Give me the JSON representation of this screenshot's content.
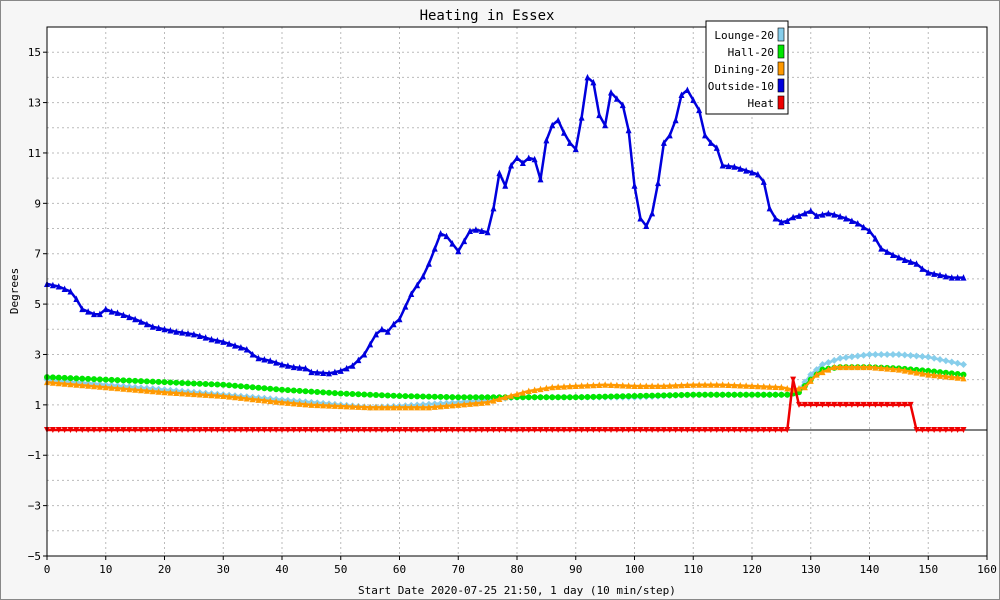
{
  "chart_data": {
    "type": "line",
    "title": "Heating in Essex",
    "xlabel": "Start Date 2020-07-25 21:50, 1 day (10 min/step)",
    "ylabel": "Degrees",
    "xlim": [
      0,
      160
    ],
    "ylim": [
      -5,
      16
    ],
    "xticks": [
      0,
      10,
      20,
      30,
      40,
      50,
      60,
      70,
      80,
      90,
      100,
      110,
      120,
      130,
      140,
      150,
      160
    ],
    "yticks": [
      -5,
      -3,
      -1,
      1,
      3,
      5,
      7,
      9,
      11,
      13,
      15
    ],
    "grid": true,
    "legend_position": "top-right",
    "series": [
      {
        "name": "Lounge-20",
        "color": "#87ceeb",
        "marker": "diamond",
        "points": [
          [
            0,
            2.0
          ],
          [
            10,
            1.8
          ],
          [
            20,
            1.6
          ],
          [
            30,
            1.4
          ],
          [
            40,
            1.2
          ],
          [
            50,
            1.0
          ],
          [
            55,
            0.9
          ],
          [
            60,
            0.95
          ],
          [
            70,
            1.1
          ],
          [
            75,
            1.2
          ],
          [
            80,
            1.3
          ],
          [
            90,
            1.3
          ],
          [
            100,
            1.3
          ],
          [
            110,
            1.4
          ],
          [
            120,
            1.4
          ],
          [
            126,
            1.4
          ],
          [
            128,
            1.6
          ],
          [
            130,
            2.2
          ],
          [
            132,
            2.6
          ],
          [
            135,
            2.85
          ],
          [
            140,
            3.0
          ],
          [
            145,
            3.0
          ],
          [
            150,
            2.9
          ],
          [
            154,
            2.7
          ],
          [
            156,
            2.6
          ]
        ]
      },
      {
        "name": "Hall-20",
        "color": "#00e600",
        "marker": "circle",
        "points": [
          [
            0,
            2.1
          ],
          [
            10,
            2.0
          ],
          [
            20,
            1.9
          ],
          [
            30,
            1.8
          ],
          [
            40,
            1.6
          ],
          [
            50,
            1.45
          ],
          [
            60,
            1.35
          ],
          [
            70,
            1.3
          ],
          [
            80,
            1.3
          ],
          [
            90,
            1.3
          ],
          [
            100,
            1.35
          ],
          [
            110,
            1.4
          ],
          [
            120,
            1.4
          ],
          [
            126,
            1.4
          ],
          [
            128,
            1.5
          ],
          [
            130,
            2.0
          ],
          [
            132,
            2.4
          ],
          [
            135,
            2.5
          ],
          [
            140,
            2.5
          ],
          [
            145,
            2.45
          ],
          [
            150,
            2.35
          ],
          [
            156,
            2.2
          ]
        ]
      },
      {
        "name": "Dining-20",
        "color": "#ff9900",
        "marker": "triangle",
        "points": [
          [
            0,
            1.9
          ],
          [
            10,
            1.7
          ],
          [
            20,
            1.5
          ],
          [
            30,
            1.35
          ],
          [
            40,
            1.1
          ],
          [
            45,
            1.0
          ],
          [
            50,
            0.95
          ],
          [
            55,
            0.9
          ],
          [
            60,
            0.9
          ],
          [
            65,
            0.9
          ],
          [
            70,
            1.0
          ],
          [
            75,
            1.1
          ],
          [
            78,
            1.3
          ],
          [
            82,
            1.55
          ],
          [
            86,
            1.7
          ],
          [
            90,
            1.75
          ],
          [
            95,
            1.8
          ],
          [
            100,
            1.75
          ],
          [
            105,
            1.75
          ],
          [
            110,
            1.8
          ],
          [
            115,
            1.8
          ],
          [
            120,
            1.75
          ],
          [
            125,
            1.7
          ],
          [
            127,
            1.6
          ],
          [
            129,
            1.7
          ],
          [
            131,
            2.2
          ],
          [
            134,
            2.5
          ],
          [
            140,
            2.5
          ],
          [
            145,
            2.4
          ],
          [
            150,
            2.2
          ],
          [
            156,
            2.05
          ]
        ]
      },
      {
        "name": "Outside-10",
        "color": "#0000dd",
        "marker": "triangle",
        "points": [
          [
            0,
            5.8
          ],
          [
            2,
            5.7
          ],
          [
            4,
            5.5
          ],
          [
            5,
            5.2
          ],
          [
            6,
            4.8
          ],
          [
            7,
            4.7
          ],
          [
            8,
            4.6
          ],
          [
            9,
            4.6
          ],
          [
            10,
            4.8
          ],
          [
            11,
            4.7
          ],
          [
            12,
            4.65
          ],
          [
            15,
            4.4
          ],
          [
            18,
            4.1
          ],
          [
            20,
            4.0
          ],
          [
            22,
            3.9
          ],
          [
            25,
            3.8
          ],
          [
            28,
            3.6
          ],
          [
            30,
            3.5
          ],
          [
            32,
            3.35
          ],
          [
            34,
            3.2
          ],
          [
            35,
            3.0
          ],
          [
            36,
            2.85
          ],
          [
            38,
            2.75
          ],
          [
            40,
            2.6
          ],
          [
            42,
            2.5
          ],
          [
            44,
            2.45
          ],
          [
            45,
            2.3
          ],
          [
            48,
            2.25
          ],
          [
            50,
            2.35
          ],
          [
            52,
            2.55
          ],
          [
            54,
            3.0
          ],
          [
            55,
            3.4
          ],
          [
            56,
            3.8
          ],
          [
            57,
            4.0
          ],
          [
            58,
            3.9
          ],
          [
            59,
            4.2
          ],
          [
            60,
            4.4
          ],
          [
            61,
            4.9
          ],
          [
            62,
            5.4
          ],
          [
            63,
            5.75
          ],
          [
            64,
            6.1
          ],
          [
            65,
            6.6
          ],
          [
            66,
            7.2
          ],
          [
            67,
            7.8
          ],
          [
            68,
            7.7
          ],
          [
            69,
            7.4
          ],
          [
            70,
            7.1
          ],
          [
            71,
            7.5
          ],
          [
            72,
            7.9
          ],
          [
            73,
            7.95
          ],
          [
            74,
            7.9
          ],
          [
            75,
            7.85
          ],
          [
            76,
            8.8
          ],
          [
            77,
            10.2
          ],
          [
            78,
            9.7
          ],
          [
            79,
            10.5
          ],
          [
            80,
            10.8
          ],
          [
            81,
            10.6
          ],
          [
            82,
            10.8
          ],
          [
            83,
            10.75
          ],
          [
            84,
            9.95
          ],
          [
            85,
            11.5
          ],
          [
            86,
            12.1
          ],
          [
            87,
            12.3
          ],
          [
            88,
            11.8
          ],
          [
            89,
            11.4
          ],
          [
            90,
            11.15
          ],
          [
            91,
            12.4
          ],
          [
            92,
            14.0
          ],
          [
            93,
            13.8
          ],
          [
            94,
            12.5
          ],
          [
            95,
            12.1
          ],
          [
            96,
            13.4
          ],
          [
            97,
            13.15
          ],
          [
            98,
            12.9
          ],
          [
            99,
            11.9
          ],
          [
            100,
            9.7
          ],
          [
            101,
            8.4
          ],
          [
            102,
            8.1
          ],
          [
            103,
            8.6
          ],
          [
            104,
            9.8
          ],
          [
            105,
            11.4
          ],
          [
            106,
            11.7
          ],
          [
            107,
            12.3
          ],
          [
            108,
            13.3
          ],
          [
            109,
            13.5
          ],
          [
            110,
            13.1
          ],
          [
            111,
            12.7
          ],
          [
            112,
            11.7
          ],
          [
            113,
            11.4
          ],
          [
            114,
            11.2
          ],
          [
            115,
            10.5
          ],
          [
            117,
            10.45
          ],
          [
            119,
            10.3
          ],
          [
            121,
            10.15
          ],
          [
            122,
            9.85
          ],
          [
            123,
            8.8
          ],
          [
            124,
            8.4
          ],
          [
            125,
            8.25
          ],
          [
            126,
            8.3
          ],
          [
            127,
            8.45
          ],
          [
            128,
            8.5
          ],
          [
            130,
            8.7
          ],
          [
            131,
            8.5
          ],
          [
            133,
            8.6
          ],
          [
            134,
            8.55
          ],
          [
            136,
            8.4
          ],
          [
            138,
            8.2
          ],
          [
            140,
            7.9
          ],
          [
            141,
            7.6
          ],
          [
            142,
            7.2
          ],
          [
            144,
            6.95
          ],
          [
            146,
            6.75
          ],
          [
            148,
            6.6
          ],
          [
            149,
            6.4
          ],
          [
            150,
            6.25
          ],
          [
            152,
            6.15
          ],
          [
            154,
            6.05
          ],
          [
            156,
            6.05
          ]
        ]
      },
      {
        "name": "Heat",
        "color": "#ee0000",
        "marker": "down-triangle",
        "points": [
          [
            0,
            0
          ],
          [
            126,
            0
          ],
          [
            127,
            2.0
          ],
          [
            128,
            1.0
          ],
          [
            147,
            1.0
          ],
          [
            148,
            0
          ],
          [
            156,
            0
          ]
        ]
      }
    ]
  }
}
